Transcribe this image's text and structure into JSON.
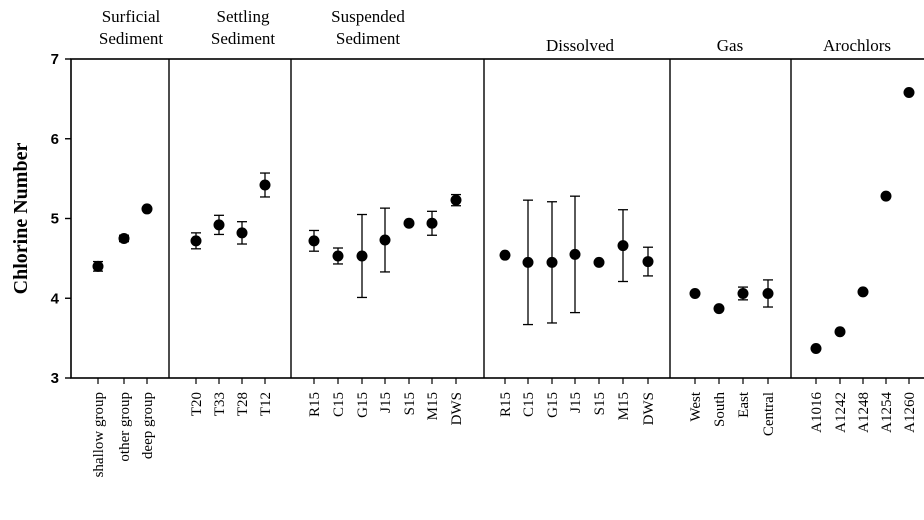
{
  "chart_data": {
    "type": "scatter",
    "ylabel": "Chlorine Number",
    "ylim": [
      3,
      7
    ],
    "yticks": [
      "3",
      "4",
      "5",
      "6",
      "7"
    ],
    "groups": [
      {
        "title_lines": [
          "Surficial",
          "Sediment"
        ],
        "points": [
          {
            "label": "shallow group",
            "y": 4.4,
            "err": 0.06
          },
          {
            "label": "other group",
            "y": 4.75,
            "err": 0.04
          },
          {
            "label": "deep group",
            "y": 5.12,
            "err": 0.0
          }
        ]
      },
      {
        "title_lines": [
          "Settling",
          "Sediment"
        ],
        "points": [
          {
            "label": "T20",
            "y": 4.72,
            "err": 0.1
          },
          {
            "label": "T33",
            "y": 4.92,
            "err": 0.12
          },
          {
            "label": "T28",
            "y": 4.82,
            "err": 0.14
          },
          {
            "label": "T12",
            "y": 5.42,
            "err": 0.15
          }
        ]
      },
      {
        "title_lines": [
          "Suspended",
          "Sediment"
        ],
        "points": [
          {
            "label": "R15",
            "y": 4.72,
            "err": 0.13
          },
          {
            "label": "C15",
            "y": 4.53,
            "err": 0.1
          },
          {
            "label": "G15",
            "y": 4.53,
            "err": 0.52
          },
          {
            "label": "J15",
            "y": 4.73,
            "err": 0.4
          },
          {
            "label": "S15",
            "y": 4.94,
            "err": 0.0
          },
          {
            "label": "M15",
            "y": 4.94,
            "err": 0.15
          },
          {
            "label": "DWS",
            "y": 5.23,
            "err": 0.07
          }
        ]
      },
      {
        "title_lines": [
          "Dissolved"
        ],
        "points": [
          {
            "label": "R15",
            "y": 4.54,
            "err": 0.0
          },
          {
            "label": "C15",
            "y": 4.45,
            "err": 0.78
          },
          {
            "label": "G15",
            "y": 4.45,
            "err": 0.76
          },
          {
            "label": "J15",
            "y": 4.55,
            "err": 0.73
          },
          {
            "label": "S15",
            "y": 4.45,
            "err": 0.0
          },
          {
            "label": "M15",
            "y": 4.66,
            "err": 0.45
          },
          {
            "label": "DWS",
            "y": 4.46,
            "err": 0.18
          }
        ]
      },
      {
        "title_lines": [
          "Gas"
        ],
        "points": [
          {
            "label": "West",
            "y": 4.06,
            "err": 0.0
          },
          {
            "label": "South",
            "y": 3.87,
            "err": 0.0
          },
          {
            "label": "East",
            "y": 4.06,
            "err": 0.08
          },
          {
            "label": "Central",
            "y": 4.06,
            "err": 0.17
          }
        ]
      },
      {
        "title_lines": [
          "Arochlors"
        ],
        "points": [
          {
            "label": "A1016",
            "y": 3.37,
            "err": 0.0
          },
          {
            "label": "A1242",
            "y": 3.58,
            "err": 0.0
          },
          {
            "label": "A1248",
            "y": 4.08,
            "err": 0.0
          },
          {
            "label": "A1254",
            "y": 5.28,
            "err": 0.0
          },
          {
            "label": "A1260",
            "y": 6.58,
            "err": 0.0
          }
        ]
      }
    ]
  }
}
